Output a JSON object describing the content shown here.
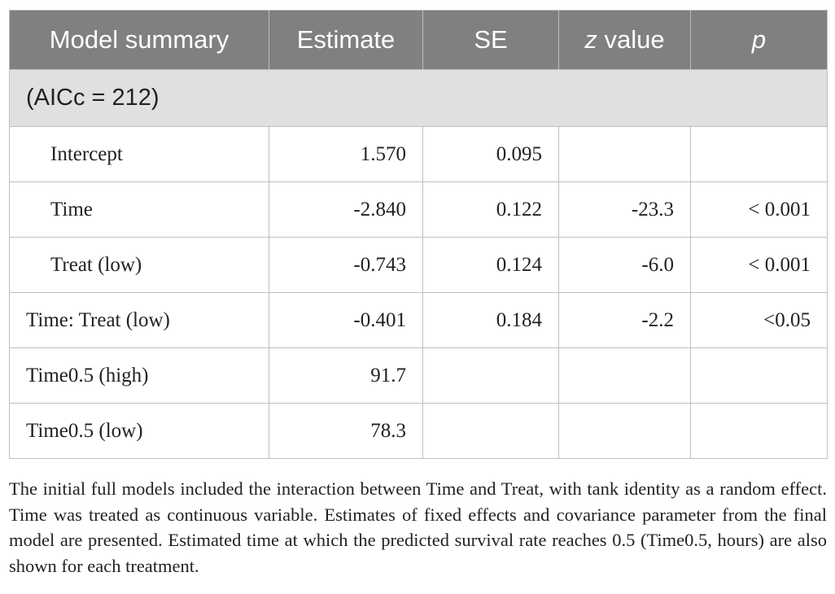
{
  "table": {
    "header": [
      [
        "Model summary"
      ],
      [
        "Estimate"
      ],
      [
        "SE"
      ],
      [
        {
          "text": "z",
          "italic": true
        },
        " value"
      ],
      [
        {
          "text": "p",
          "italic": true
        }
      ]
    ],
    "section": "(AICc = 212)",
    "rows": [
      [
        "Intercept",
        "1.570",
        "0.095",
        null,
        null
      ],
      [
        "Time",
        "-2.840",
        "0.122",
        "-23.3",
        "< 0.001"
      ],
      [
        "Treat (low)",
        "-0.743",
        "0.124",
        "-6.0",
        "< 0.001"
      ],
      [
        "Time: Treat (low)",
        "-0.401",
        "0.184",
        "-2.2",
        "<0.05"
      ],
      [
        "Time0.5 (high)",
        "91.7",
        null,
        null,
        null
      ],
      [
        "Time0.5 (low)",
        "78.3",
        null,
        null,
        null
      ]
    ],
    "indented_rows": [
      0,
      1,
      2
    ]
  },
  "footnote": "The initial full models included the interaction between Time and Treat, with tank identity as a random effect. Time was treated as continuous variable. Estimates of fixed effects and covariance parameter from the final model are presented. Estimated time at which the predicted survival rate reaches 0.5 (Time0.5, hours) are also shown for each treatment."
}
